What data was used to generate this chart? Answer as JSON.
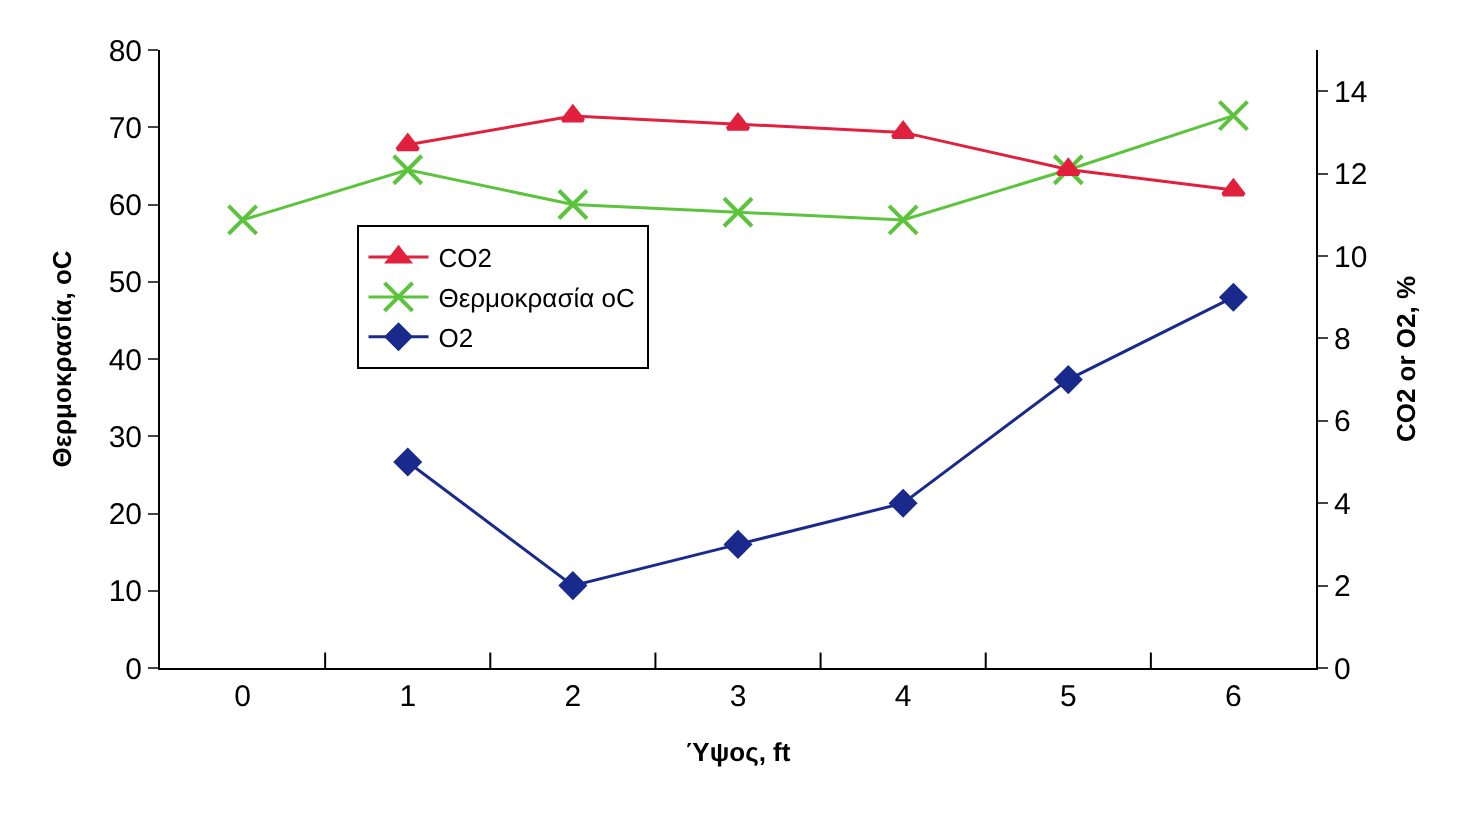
{
  "chart_data": {
    "type": "line",
    "categories": [
      "0",
      "1",
      "2",
      "3",
      "4",
      "5",
      "6"
    ],
    "xlabel": "Ύψος, ft",
    "ylabel": "Θερμοκρασία, oC",
    "y2label": "CO2 or O2, %",
    "ylim": [
      0,
      80
    ],
    "yticks": [
      0,
      10,
      20,
      30,
      40,
      50,
      60,
      70,
      80
    ],
    "y2lim": [
      0,
      15
    ],
    "y2ticks": [
      0,
      2,
      4,
      6,
      8,
      10,
      12,
      14
    ],
    "legend": "left",
    "series": [
      {
        "name": "CO2",
        "color": "#e0203c",
        "axis": "y2",
        "marker": "triangle",
        "values": [
          null,
          12.7,
          13.4,
          13.2,
          13.0,
          12.1,
          11.6
        ]
      },
      {
        "name": "Θερμοκρασία oC",
        "color": "#5cc43c",
        "axis": "y",
        "marker": "cross",
        "values": [
          58,
          64.5,
          60,
          59,
          58,
          64.5,
          71.5
        ]
      },
      {
        "name": "O2",
        "color": "#1a2a8c",
        "axis": "y2",
        "marker": "diamond",
        "values": [
          null,
          5,
          2,
          3,
          4,
          7,
          9
        ]
      }
    ]
  }
}
